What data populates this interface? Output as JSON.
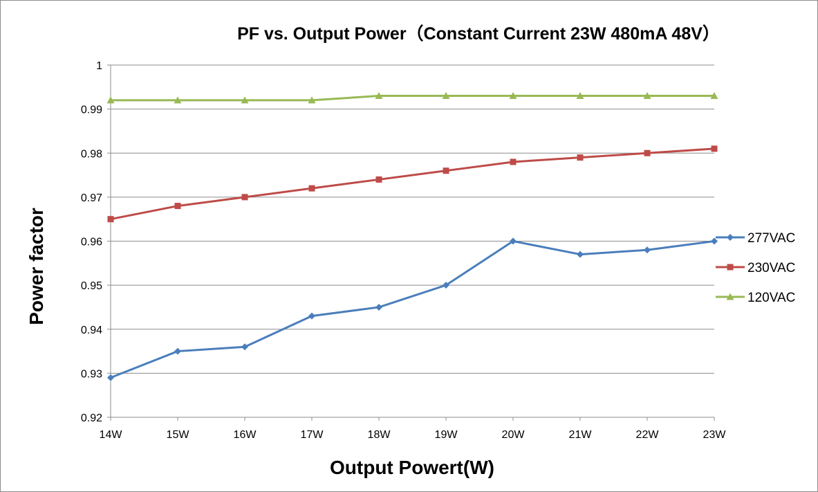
{
  "chart_data": {
    "type": "line",
    "title": "PF vs. Output Power（Constant Current 23W 480mA 48V）",
    "xlabel": "Output Powert(W)",
    "ylabel": "Power factor",
    "categories": [
      "14W",
      "15W",
      "16W",
      "17W",
      "18W",
      "19W",
      "20W",
      "21W",
      "22W",
      "23W"
    ],
    "ylim": [
      0.92,
      1
    ],
    "yticks": [
      "0.92",
      "0.93",
      "0.94",
      "0.95",
      "0.96",
      "0.97",
      "0.98",
      "0.99",
      "1"
    ],
    "grid": "horizontal",
    "legend_position": "right",
    "series": [
      {
        "name": "277VAC",
        "color": "#4a7ebb",
        "marker": "diamond",
        "values": [
          0.929,
          0.935,
          0.936,
          0.943,
          0.945,
          0.95,
          0.96,
          0.957,
          0.958,
          0.96
        ]
      },
      {
        "name": "230VAC",
        "color": "#be4b48",
        "marker": "square",
        "values": [
          0.965,
          0.968,
          0.97,
          0.972,
          0.974,
          0.976,
          0.978,
          0.979,
          0.98,
          0.981
        ]
      },
      {
        "name": "120VAC",
        "color": "#98b954",
        "marker": "triangle",
        "values": [
          0.992,
          0.992,
          0.992,
          0.992,
          0.993,
          0.993,
          0.993,
          0.993,
          0.993,
          0.993
        ]
      }
    ]
  }
}
